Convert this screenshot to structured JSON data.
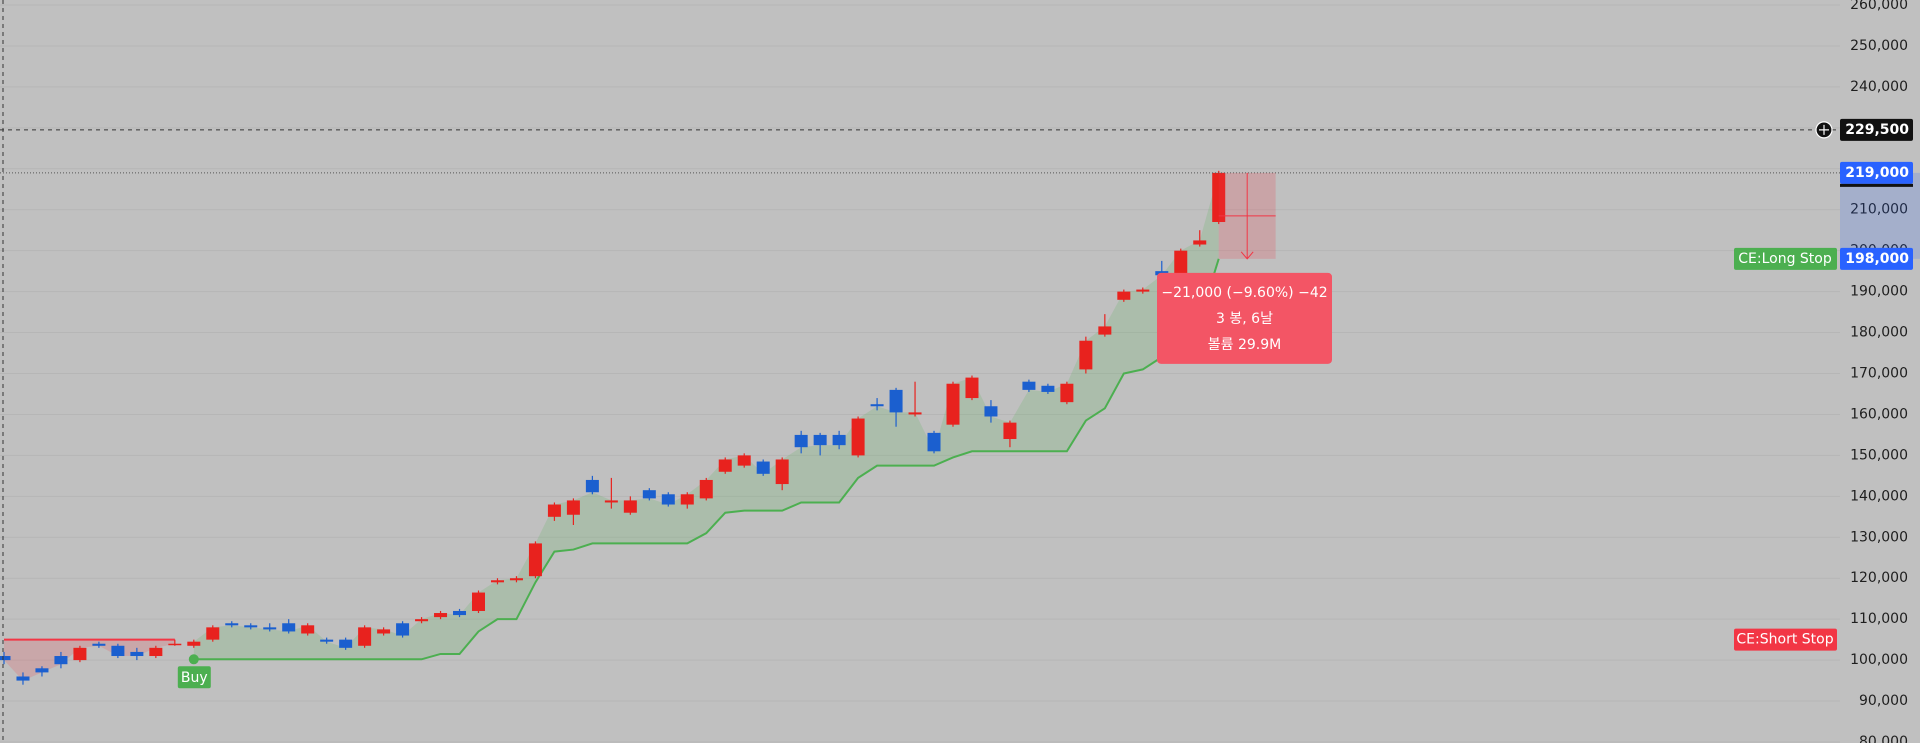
{
  "chart_data": {
    "type": "candlestick",
    "up_color": "#e8221e",
    "down_color": "#1b5fcf",
    "ylim": [
      80000,
      260000
    ],
    "yticks": [
      {
        "value": 260000,
        "label": "260,000"
      },
      {
        "value": 250000,
        "label": "250,000"
      },
      {
        "value": 240000,
        "label": "240,000"
      },
      {
        "value": 230000,
        "label": "230,000"
      },
      {
        "value": 220000,
        "label": "220,000"
      },
      {
        "value": 210000,
        "label": "210,000"
      },
      {
        "value": 200000,
        "label": "200,000"
      },
      {
        "value": 190000,
        "label": "190,000"
      },
      {
        "value": 180000,
        "label": "180,000"
      },
      {
        "value": 170000,
        "label": "170,000"
      },
      {
        "value": 160000,
        "label": "160,000"
      },
      {
        "value": 150000,
        "label": "150,000"
      },
      {
        "value": 140000,
        "label": "140,000"
      },
      {
        "value": 130000,
        "label": "130,000"
      },
      {
        "value": 120000,
        "label": "120,000"
      },
      {
        "value": 110000,
        "label": "110,000"
      },
      {
        "value": 100000,
        "label": "100,000"
      },
      {
        "value": 90000,
        "label": "90,000"
      },
      {
        "value": 80000,
        "label": "80,000"
      }
    ],
    "grid": true,
    "open": [
      101000,
      96000,
      98000,
      101000,
      100000,
      104000,
      103500,
      102000,
      101000,
      104000,
      103500,
      105000,
      109000,
      108500,
      108000,
      109000,
      106500,
      105000,
      105000,
      103500,
      106500,
      109000,
      109500,
      110500,
      112000,
      112000,
      119000,
      119500,
      120500,
      135000,
      135500,
      144000,
      138500,
      136000,
      141500,
      140500,
      138000,
      139500,
      146000,
      147500,
      148500,
      143000,
      155000,
      155000,
      155000,
      150000,
      162500,
      166000,
      160000,
      155500,
      157500,
      164000,
      162000,
      154000,
      168000,
      167000,
      163000,
      171000,
      179500,
      188000,
      190000,
      195000,
      194000,
      201500,
      207000
    ],
    "high": [
      102000,
      97000,
      98500,
      102000,
      103500,
      104500,
      104000,
      103000,
      103500,
      105000,
      105000,
      108500,
      109500,
      109000,
      109000,
      110000,
      109000,
      105500,
      105500,
      108500,
      108000,
      109500,
      110500,
      112000,
      112500,
      117000,
      120000,
      120500,
      129000,
      138500,
      139500,
      145000,
      144500,
      140000,
      142000,
      141000,
      141000,
      144500,
      149500,
      150500,
      149000,
      149500,
      156000,
      155500,
      156000,
      159500,
      164000,
      166500,
      168000,
      156000,
      168000,
      169500,
      163500,
      158500,
      168500,
      167500,
      168000,
      179000,
      184500,
      190500,
      191000,
      197500,
      200500,
      205000,
      219500
    ],
    "low": [
      99000,
      94000,
      96000,
      98000,
      99500,
      103000,
      100500,
      100000,
      100500,
      103500,
      103000,
      104500,
      108000,
      107500,
      107000,
      106500,
      106000,
      104000,
      102500,
      103000,
      106000,
      105500,
      109000,
      110000,
      110500,
      111500,
      118500,
      119000,
      120000,
      134000,
      133000,
      140500,
      137000,
      135500,
      139000,
      137500,
      137000,
      139000,
      145500,
      147000,
      145000,
      141500,
      150500,
      150000,
      151500,
      149500,
      161000,
      157000,
      159500,
      150500,
      157000,
      163500,
      158000,
      152000,
      165500,
      165000,
      162500,
      170000,
      179000,
      187500,
      189500,
      193500,
      193500,
      201000,
      206500
    ],
    "close": [
      100000,
      95000,
      97000,
      99000,
      103000,
      103500,
      101000,
      101000,
      103000,
      104000,
      104500,
      108000,
      108500,
      108000,
      107500,
      107000,
      108500,
      104500,
      103000,
      108000,
      107500,
      106000,
      110000,
      111500,
      111000,
      116500,
      119500,
      120000,
      128500,
      138000,
      139000,
      141000,
      139000,
      139000,
      139500,
      138000,
      140500,
      144000,
      149000,
      150000,
      145500,
      149000,
      152000,
      152500,
      152500,
      159000,
      162000,
      160500,
      160500,
      151000,
      167500,
      169000,
      159500,
      158000,
      166000,
      165500,
      167500,
      178000,
      181500,
      190000,
      190500,
      194000,
      200000,
      202500,
      219000
    ],
    "long_stop": {
      "name": "CE:Long Stop",
      "color": "#4caf50",
      "values": [
        null,
        null,
        null,
        null,
        null,
        null,
        null,
        null,
        null,
        null,
        100200,
        100200,
        100200,
        100200,
        100200,
        100200,
        100200,
        100200,
        100200,
        100200,
        100200,
        100200,
        100200,
        101500,
        101500,
        107000,
        110000,
        110000,
        119000,
        126500,
        127000,
        128500,
        128500,
        128500,
        128500,
        128500,
        128500,
        131000,
        136000,
        136500,
        136500,
        136500,
        138500,
        138500,
        138500,
        144500,
        147500,
        147500,
        147500,
        147500,
        149500,
        151000,
        151000,
        151000,
        151000,
        151000,
        151000,
        158500,
        161500,
        170000,
        171000,
        174000,
        177000,
        183000,
        198000
      ]
    },
    "short_stop": {
      "name": "CE:Short Stop",
      "color": "#f23645",
      "values": [
        105000,
        105000,
        105000,
        105000,
        105000,
        105000,
        105000,
        105000,
        105000,
        105000,
        null,
        null,
        null,
        null,
        null,
        null,
        null,
        null,
        null,
        null,
        null,
        null,
        null,
        null,
        null,
        null,
        null,
        null,
        null,
        null,
        null,
        null,
        null,
        null,
        null,
        null,
        null,
        null,
        null,
        null,
        null,
        null,
        null,
        null,
        null,
        null,
        null,
        null,
        null,
        null,
        null,
        null,
        null,
        null,
        null,
        null,
        null,
        null,
        null,
        null,
        null,
        null,
        null,
        null,
        null
      ]
    },
    "buy_signal": {
      "label": "Buy",
      "value": 100200
    },
    "crosshair": {
      "value": 229500,
      "label": "229,500"
    },
    "last_price": {
      "value": 219000,
      "label": "219,000"
    },
    "stop_price": {
      "value": 198000,
      "label": "198,000"
    },
    "measure": {
      "from": 219000,
      "to": 198000,
      "lines": [
        "−21,000 (−9.60%) −42",
        "3 봉, 6날",
        "볼륨 29.9M"
      ]
    }
  }
}
